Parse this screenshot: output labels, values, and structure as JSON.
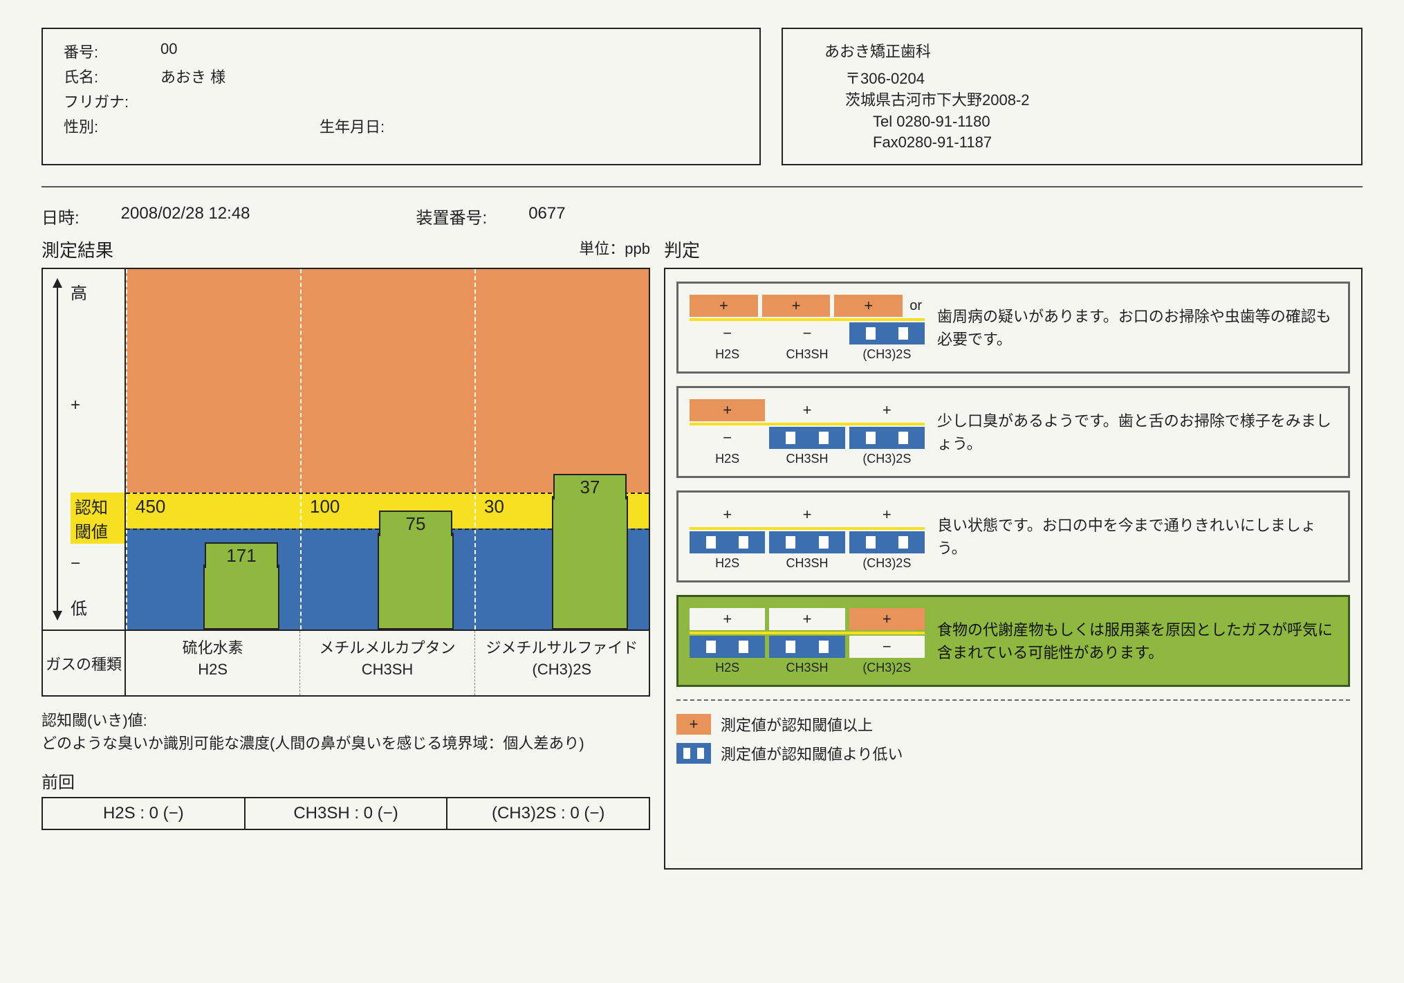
{
  "patient": {
    "number_label": "番号:",
    "number_value": "00",
    "name_label": "氏名:",
    "name_value": "あおき 様",
    "furigana_label": "フリガナ:",
    "furigana_value": "",
    "sex_label": "性別:",
    "sex_value": "",
    "dob_label": "生年月日:",
    "dob_value": ""
  },
  "clinic": {
    "name": "あおき矯正歯科",
    "postal": "〒306-0204",
    "address": "茨城県古河市下大野2008-2",
    "tel": "Tel 0280-91-1180",
    "fax": "Fax0280-91-1187"
  },
  "meta": {
    "datetime_label": "日時:",
    "datetime_value": "2008/02/28 12:48",
    "device_label": "装置番号:",
    "device_value": "0677"
  },
  "results": {
    "title": "測定結果",
    "unit_label": "単位：ppb",
    "y_axis": {
      "high": "高",
      "plus": "+",
      "threshold": "認知閾値",
      "minus": "−",
      "low": "低"
    },
    "gas_type_label": "ガスの種類",
    "colors": {
      "orange": "#e8935a",
      "yellow": "#f7e021",
      "blue": "#3b6fb0",
      "bar": "#8eb83f",
      "highlight": "#8eb83f"
    },
    "chart": {
      "zone_orange_pct": 62,
      "zone_yellow_pct": 10,
      "zone_blue_pct": 28
    },
    "gases": [
      {
        "name_jp": "硫化水素",
        "formula": "H2S",
        "threshold": "450",
        "value": "171",
        "bar_height_pct": 18
      },
      {
        "name_jp": "メチルメルカプタン",
        "formula": "CH3SH",
        "threshold": "100",
        "value": "75",
        "bar_height_pct": 27
      },
      {
        "name_jp": "ジメチルサルファイド",
        "formula": "(CH3)2S",
        "threshold": "30",
        "value": "37",
        "bar_height_pct": 37
      }
    ],
    "note_title": "認知閾(いき)値:",
    "note_body": "どのような臭いか識別可能な濃度(人間の鼻が臭いを感じる境界域：個人差あり)"
  },
  "previous": {
    "title": "前回",
    "values": [
      "H2S : 0 (−)",
      "CH3SH : 0 (−)",
      "(CH3)2S : 0 (−)"
    ]
  },
  "judgment": {
    "title": "判定",
    "items": [
      {
        "highlight": false,
        "top": [
          "orange",
          "orange",
          "orange"
        ],
        "or_text": "or",
        "bottom": [
          "plain-minus",
          "plain-minus",
          "blue"
        ],
        "text": "歯周病の疑いがあります。お口のお掃除や虫歯等の確認も必要です。"
      },
      {
        "highlight": false,
        "top": [
          "orange",
          "plain-plus",
          "plain-plus"
        ],
        "bottom": [
          "plain-minus",
          "blue",
          "blue"
        ],
        "text": "少し口臭があるようです。歯と舌のお掃除で様子をみましょう。"
      },
      {
        "highlight": false,
        "top": [
          "plain-plus",
          "plain-plus",
          "plain-plus"
        ],
        "bottom": [
          "blue",
          "blue",
          "blue"
        ],
        "text": "良い状態です。お口の中を今まで通りきれいにしましょう。"
      },
      {
        "highlight": true,
        "top": [
          "plain-plus",
          "plain-plus",
          "orange"
        ],
        "bottom": [
          "blue",
          "blue",
          "plain-minus"
        ],
        "text": "食物の代謝産物もしくは服用薬を原因としたガスが呼気に含まれている可能性があります。"
      }
    ],
    "gas_labels": [
      "H2S",
      "CH3SH",
      "(CH3)2S"
    ],
    "legend": {
      "above": "測定値が認知閾値以上",
      "below": "測定値が認知閾値より低い"
    }
  }
}
